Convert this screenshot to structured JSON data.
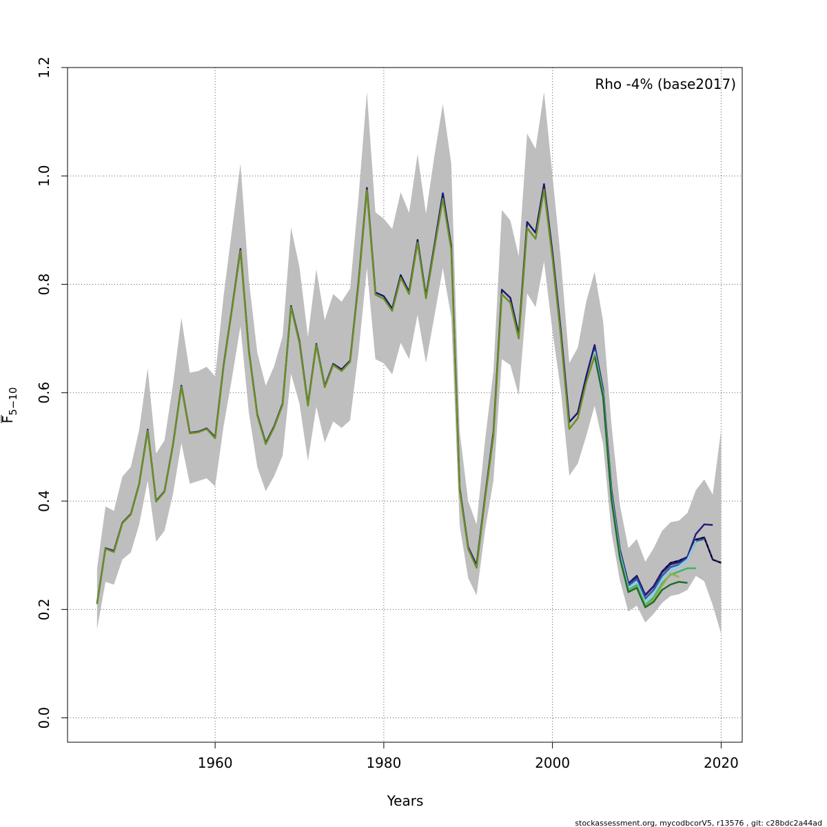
{
  "chart_data": {
    "type": "line",
    "title": "",
    "xlabel": "Years",
    "ylabel_main": "F",
    "ylabel_sub": "5−10",
    "xlim": [
      1942.5,
      2022.5
    ],
    "ylim": [
      -0.045,
      1.2
    ],
    "x_ticks": [
      1960,
      1980,
      2000,
      2020
    ],
    "y_ticks": [
      0.0,
      0.2,
      0.4,
      0.6,
      0.8,
      1.0,
      1.2
    ],
    "y_tick_labels": [
      "0.0",
      "0.2",
      "0.4",
      "0.6",
      "0.8",
      "1.0",
      "1.2"
    ],
    "grid": true,
    "annotation": "Rho -4% (base2017)",
    "footer": "stockassessment.org, mycodbcorV5, r13576 , git: c28bdc2a44ad",
    "band": {
      "color": "#bebebe",
      "x": [
        1946,
        1947,
        1948,
        1949,
        1950,
        1951,
        1952,
        1953,
        1954,
        1955,
        1956,
        1957,
        1958,
        1959,
        1960,
        1961,
        1962,
        1963,
        1964,
        1965,
        1966,
        1967,
        1968,
        1969,
        1970,
        1971,
        1972,
        1973,
        1974,
        1975,
        1976,
        1977,
        1978,
        1979,
        1980,
        1981,
        1982,
        1983,
        1984,
        1985,
        1986,
        1987,
        1988,
        1989,
        1990,
        1991,
        1992,
        1993,
        1994,
        1995,
        1996,
        1997,
        1998,
        1999,
        2000,
        2001,
        2002,
        2003,
        2004,
        2005,
        2006,
        2007,
        2008,
        2009,
        2010,
        2011,
        2012,
        2013,
        2014,
        2015,
        2016,
        2017,
        2018,
        2019,
        2020
      ],
      "upper": [
        0.275,
        0.39,
        0.382,
        0.445,
        0.463,
        0.532,
        0.645,
        0.488,
        0.512,
        0.615,
        0.738,
        0.637,
        0.64,
        0.648,
        0.63,
        0.778,
        0.9,
        1.023,
        0.808,
        0.674,
        0.613,
        0.649,
        0.704,
        0.905,
        0.832,
        0.703,
        0.828,
        0.734,
        0.782,
        0.768,
        0.792,
        0.96,
        1.155,
        0.933,
        0.921,
        0.902,
        0.97,
        0.932,
        1.04,
        0.93,
        1.037,
        1.133,
        1.022,
        0.528,
        0.4,
        0.357,
        0.512,
        0.64,
        0.937,
        0.918,
        0.852,
        1.078,
        1.05,
        1.155,
        1.0,
        0.844,
        0.655,
        0.683,
        0.768,
        0.823,
        0.732,
        0.54,
        0.392,
        0.313,
        0.33,
        0.288,
        0.313,
        0.345,
        0.361,
        0.364,
        0.378,
        0.42,
        0.44,
        0.412,
        0.532
      ],
      "lower": [
        0.163,
        0.251,
        0.246,
        0.292,
        0.305,
        0.357,
        0.438,
        0.325,
        0.345,
        0.413,
        0.507,
        0.432,
        0.437,
        0.442,
        0.427,
        0.538,
        0.627,
        0.723,
        0.563,
        0.463,
        0.418,
        0.446,
        0.484,
        0.635,
        0.58,
        0.474,
        0.574,
        0.508,
        0.547,
        0.535,
        0.549,
        0.674,
        0.83,
        0.662,
        0.654,
        0.634,
        0.692,
        0.662,
        0.744,
        0.655,
        0.741,
        0.83,
        0.739,
        0.355,
        0.258,
        0.226,
        0.346,
        0.438,
        0.662,
        0.651,
        0.595,
        0.783,
        0.758,
        0.842,
        0.713,
        0.603,
        0.447,
        0.469,
        0.52,
        0.576,
        0.505,
        0.342,
        0.253,
        0.196,
        0.207,
        0.176,
        0.192,
        0.212,
        0.225,
        0.228,
        0.236,
        0.262,
        0.252,
        0.208,
        0.155
      ]
    },
    "series": [
      {
        "color": "#191970",
        "dash": false,
        "x": [
          1946,
          1947,
          1948,
          1949,
          1950,
          1951,
          1952,
          1953,
          1954,
          1955,
          1956,
          1957,
          1958,
          1959,
          1960,
          1961,
          1962,
          1963,
          1964,
          1965,
          1966,
          1967,
          1968,
          1969,
          1970,
          1971,
          1972,
          1973,
          1974,
          1975,
          1976,
          1977,
          1978,
          1979,
          1980,
          1981,
          1982,
          1983,
          1984,
          1985,
          1986,
          1987,
          1988,
          1989,
          1990,
          1991,
          1992,
          1993,
          1994,
          1995,
          1996,
          1997,
          1998,
          1999,
          2000,
          2001,
          2002,
          2003,
          2004,
          2005,
          2006,
          2007,
          2008,
          2009,
          2010,
          2011,
          2012,
          2013,
          2014,
          2015,
          2016,
          2017,
          2018,
          2019,
          2020
        ],
        "y": [
          0.211,
          0.313,
          0.308,
          0.36,
          0.376,
          0.432,
          0.532,
          0.4,
          0.418,
          0.504,
          0.613,
          0.526,
          0.528,
          0.534,
          0.518,
          0.65,
          0.755,
          0.865,
          0.678,
          0.56,
          0.507,
          0.538,
          0.58,
          0.76,
          0.695,
          0.578,
          0.69,
          0.612,
          0.653,
          0.643,
          0.659,
          0.804,
          0.978,
          0.785,
          0.778,
          0.755,
          0.817,
          0.786,
          0.882,
          0.778,
          0.872,
          0.968,
          0.87,
          0.424,
          0.315,
          0.282,
          0.408,
          0.527,
          0.79,
          0.775,
          0.707,
          0.915,
          0.895,
          0.985,
          0.858,
          0.713,
          0.546,
          0.563,
          0.63,
          0.688,
          0.606,
          0.42,
          0.31,
          0.248,
          0.262,
          0.227,
          0.243,
          0.27,
          0.286,
          0.29,
          0.297,
          0.329,
          0.333,
          0.292,
          0.286
        ]
      },
      {
        "color": "#000000",
        "dash": true,
        "x": [
          2009,
          2010,
          2011,
          2012,
          2013,
          2014,
          2015,
          2016,
          2017,
          2018,
          2019,
          2020
        ],
        "y": [
          0.248,
          0.262,
          0.227,
          0.243,
          0.27,
          0.286,
          0.29,
          0.297,
          0.329,
          0.333,
          0.292,
          0.286
        ]
      },
      {
        "color": "#2e1c7a",
        "dash": false,
        "x": [
          2005,
          2006,
          2007,
          2008,
          2009,
          2010,
          2011,
          2012,
          2013,
          2014,
          2015,
          2016,
          2017,
          2018,
          2019
        ],
        "y": [
          0.686,
          0.604,
          0.418,
          0.31,
          0.248,
          0.26,
          0.226,
          0.242,
          0.268,
          0.283,
          0.287,
          0.297,
          0.339,
          0.357,
          0.356
        ]
      },
      {
        "color": "#2a5fa8",
        "dash": false,
        "x": [
          2005,
          2006,
          2007,
          2008,
          2009,
          2010,
          2011,
          2012,
          2013,
          2014,
          2015,
          2016,
          2017,
          2018
        ],
        "y": [
          0.68,
          0.6,
          0.414,
          0.306,
          0.244,
          0.256,
          0.22,
          0.236,
          0.262,
          0.278,
          0.283,
          0.293,
          0.326,
          0.33
        ]
      },
      {
        "color": "#87ceeb",
        "dash": false,
        "x": [
          2005,
          2006,
          2007,
          2008,
          2009,
          2010,
          2011,
          2012,
          2013,
          2014,
          2015,
          2016,
          2017
        ],
        "y": [
          0.676,
          0.598,
          0.41,
          0.302,
          0.24,
          0.25,
          0.213,
          0.227,
          0.254,
          0.271,
          0.28,
          0.292,
          0.327
        ]
      },
      {
        "color": "#3cb371",
        "dash": false,
        "x": [
          2005,
          2006,
          2007,
          2008,
          2009,
          2010,
          2011,
          2012,
          2013,
          2014,
          2015,
          2016,
          2017
        ],
        "y": [
          0.672,
          0.596,
          0.406,
          0.298,
          0.236,
          0.245,
          0.208,
          0.222,
          0.248,
          0.264,
          0.27,
          0.276,
          0.276
        ]
      },
      {
        "color": "#9ab03a",
        "dash": false,
        "x": [
          2005,
          2006,
          2007,
          2008,
          2009,
          2010,
          2011,
          2012,
          2013,
          2014,
          2015
        ],
        "y": [
          0.67,
          0.594,
          0.404,
          0.296,
          0.234,
          0.242,
          0.206,
          0.218,
          0.244,
          0.266,
          0.26
        ]
      },
      {
        "color": "#1b6e2a",
        "dash": false,
        "x": [
          2005,
          2006,
          2007,
          2008,
          2009,
          2010,
          2011,
          2012,
          2013,
          2014,
          2015,
          2016
        ],
        "y": [
          0.668,
          0.592,
          0.402,
          0.294,
          0.232,
          0.24,
          0.204,
          0.214,
          0.236,
          0.246,
          0.251,
          0.249
        ]
      },
      {
        "color": "#6b8e23",
        "dash": false,
        "x": [
          1946,
          1947,
          1948,
          1949,
          1950,
          1951,
          1952,
          1953,
          1954,
          1955,
          1956,
          1957,
          1958,
          1959,
          1960,
          1961,
          1962,
          1963,
          1964,
          1965,
          1966,
          1967,
          1968,
          1969,
          1970,
          1971,
          1972,
          1973,
          1974,
          1975,
          1976,
          1977,
          1978,
          1979,
          1980,
          1981,
          1982,
          1983,
          1984,
          1985,
          1986,
          1987,
          1988,
          1989,
          1990,
          1991,
          1992,
          1993,
          1994,
          1995,
          1996,
          1997,
          1998,
          1999,
          2000,
          2001,
          2002,
          2003,
          2004,
          2005
        ],
        "y": [
          0.21,
          0.312,
          0.306,
          0.359,
          0.375,
          0.431,
          0.53,
          0.399,
          0.417,
          0.503,
          0.611,
          0.525,
          0.527,
          0.533,
          0.516,
          0.648,
          0.753,
          0.862,
          0.676,
          0.558,
          0.505,
          0.536,
          0.578,
          0.758,
          0.692,
          0.576,
          0.688,
          0.61,
          0.651,
          0.64,
          0.657,
          0.8,
          0.974,
          0.781,
          0.773,
          0.751,
          0.812,
          0.782,
          0.877,
          0.774,
          0.866,
          0.958,
          0.864,
          0.42,
          0.312,
          0.277,
          0.404,
          0.521,
          0.782,
          0.766,
          0.7,
          0.904,
          0.884,
          0.975,
          0.848,
          0.703,
          0.533,
          0.553,
          0.619,
          0.668
        ]
      }
    ]
  }
}
